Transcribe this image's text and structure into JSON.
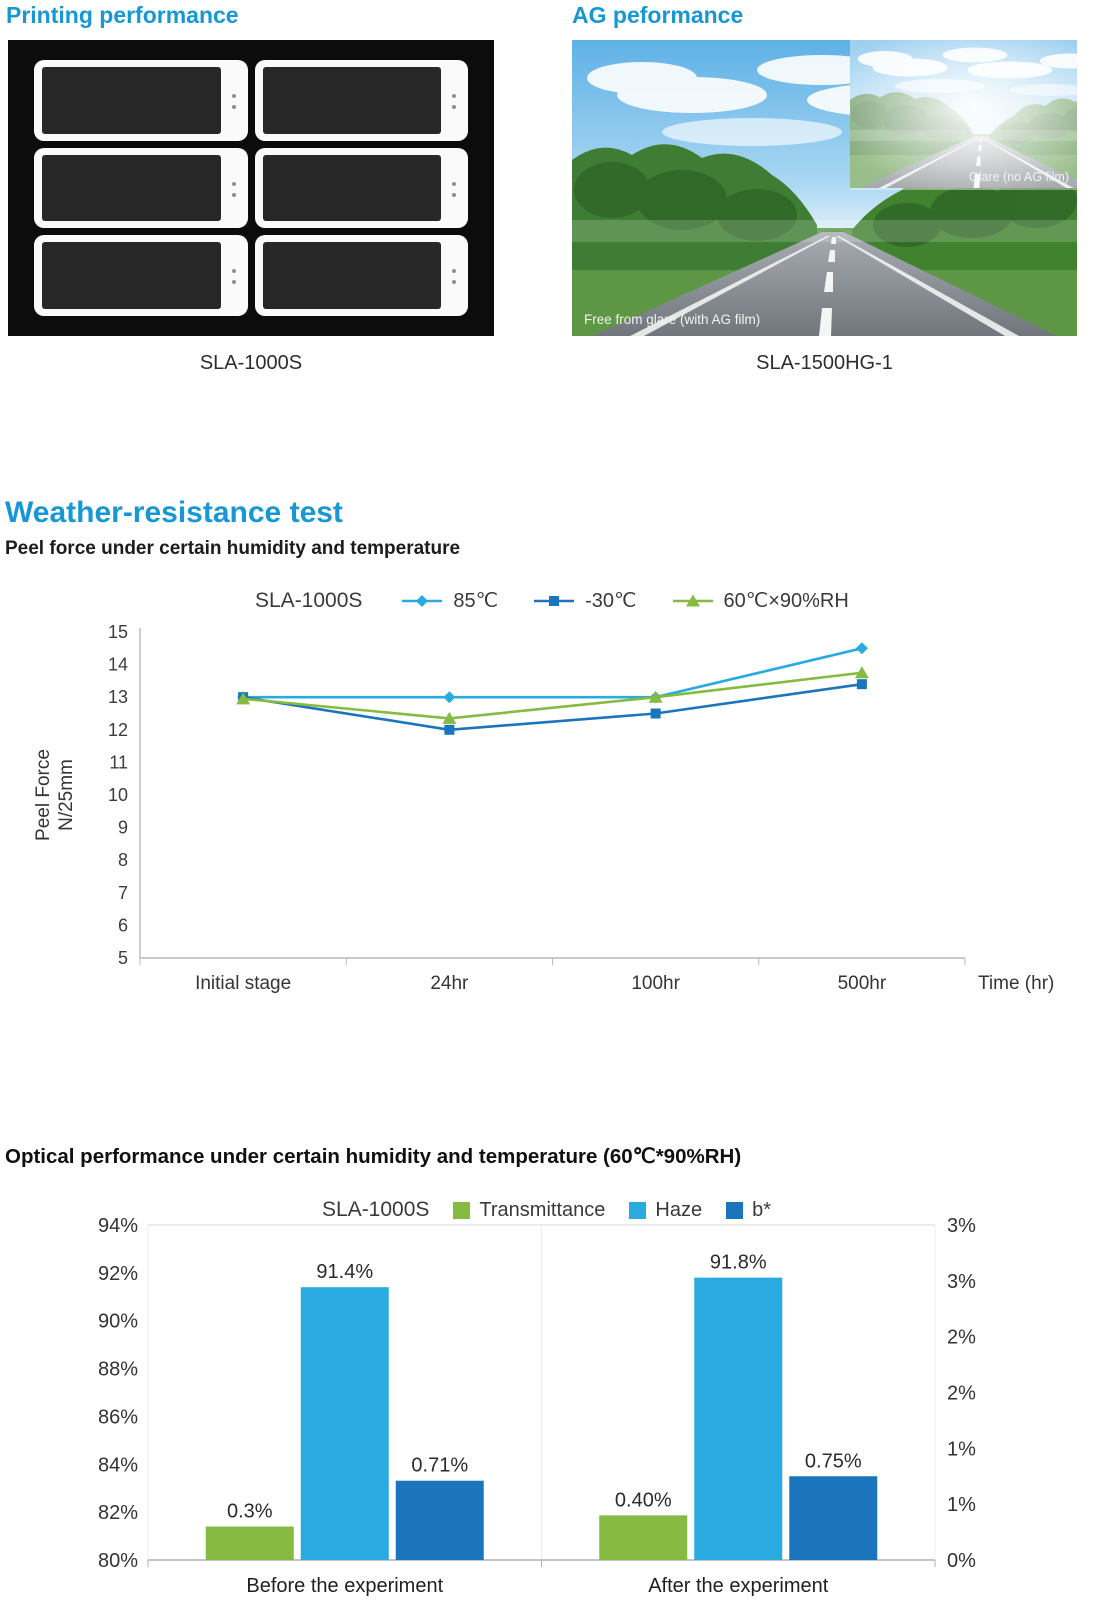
{
  "colors": {
    "heading_blue": "#1798d5",
    "light_blue": "#29abe2",
    "dark_blue": "#1b75bc",
    "green": "#85bb40"
  },
  "sections": {
    "printing": {
      "title": "Printing performance",
      "caption": "SLA-1000S"
    },
    "ag": {
      "title": "AG peformance",
      "caption": "SLA-1500HG-1",
      "main_label": "Free from glare (with AG film)",
      "inset_label": "Glare (no AG film)"
    },
    "weather": {
      "title": "Weather-resistance test",
      "subtitle": "Peel force under certain humidity and temperature"
    },
    "optical": {
      "title": "Optical performance under certain humidity and temperature (60℃*90%RH)"
    }
  },
  "chart_data": [
    {
      "type": "line",
      "title": "SLA-1000S",
      "xlabel": "Time (hr)",
      "ylabel": "Peel Force N/25mm",
      "ylabel_lines": [
        "Peel Force",
        "N/25mm"
      ],
      "categories": [
        "Initial stage",
        "24hr",
        "100hr",
        "500hr"
      ],
      "ylim": [
        5,
        15
      ],
      "yticks": [
        15,
        14,
        13,
        12,
        11,
        10,
        9,
        8,
        7,
        6,
        5
      ],
      "grid": false,
      "legend_position": "top",
      "series": [
        {
          "name": "85℃",
          "marker": "diamond",
          "color": "#29abe2",
          "values": [
            13,
            13,
            13,
            14.5
          ]
        },
        {
          "name": "-30℃",
          "marker": "square",
          "color": "#1b75bc",
          "values": [
            13,
            12,
            12.5,
            13.4
          ]
        },
        {
          "name": "60℃×90%RH",
          "marker": "triangle",
          "color": "#85bb40",
          "values": [
            12.95,
            12.35,
            13,
            13.75
          ]
        }
      ]
    },
    {
      "type": "bar",
      "title": "SLA-1000S",
      "categories": [
        "Before the experiment",
        "After the experiment"
      ],
      "left_axis": {
        "range": [
          80,
          94
        ],
        "ticks": [
          "94%",
          "92%",
          "90%",
          "88%",
          "86%",
          "84%",
          "82%",
          "80%"
        ]
      },
      "right_axis": {
        "range": [
          0,
          3
        ],
        "ticks": [
          "3%",
          "3%",
          "2%",
          "2%",
          "1%",
          "1%",
          "0%"
        ]
      },
      "grid": false,
      "legend_position": "top",
      "series": [
        {
          "name": "Transmittance",
          "color": "#85bb40",
          "axis": "right",
          "values": [
            0.3,
            0.4
          ],
          "labels": [
            "0.3%",
            "0.40%"
          ]
        },
        {
          "name": "Haze",
          "color": "#29abe2",
          "axis": "left",
          "values": [
            91.4,
            91.8
          ],
          "labels": [
            "91.4%",
            "91.8%"
          ]
        },
        {
          "name": "b*",
          "color": "#1b75bc",
          "axis": "right",
          "values": [
            0.71,
            0.75
          ],
          "labels": [
            "0.71%",
            "0.75%"
          ]
        }
      ]
    }
  ]
}
